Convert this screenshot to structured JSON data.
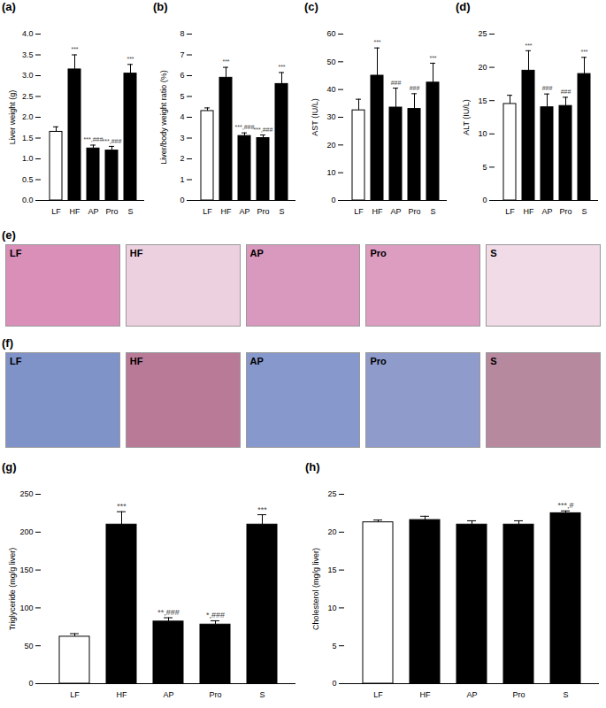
{
  "chart_data": [
    {
      "type": "bar",
      "title": "(a)",
      "y_label": "Liver weight (g)",
      "categories": [
        "LF",
        "HF",
        "AP",
        "Pro",
        "S"
      ],
      "values": [
        1.65,
        3.15,
        1.25,
        1.2,
        3.05
      ],
      "errors": [
        0.12,
        0.35,
        0.08,
        0.1,
        0.22
      ],
      "annotations": [
        null,
        "***",
        "***,###",
        "***,###",
        "***"
      ],
      "colors": [
        "#ffffff",
        "#000000",
        "#000000",
        "#000000",
        "#000000"
      ],
      "ylim": [
        0,
        4
      ],
      "yticks": [
        {
          "value": 0,
          "label": "0.0"
        },
        {
          "value": 0.5,
          "label": "0.5"
        },
        {
          "value": 1,
          "label": "1.0"
        },
        {
          "value": 1.5,
          "label": "1.5"
        },
        {
          "value": 2,
          "label": "2.0"
        },
        {
          "value": 2.5,
          "label": "2.5"
        },
        {
          "value": 3,
          "label": "3.0"
        },
        {
          "value": 3.5,
          "label": "3.5"
        },
        {
          "value": 4,
          "label": "4.0"
        }
      ]
    },
    {
      "type": "bar",
      "title": "(b)",
      "y_label": "Liver/body weight ratio (%)",
      "categories": [
        "LF",
        "HF",
        "AP",
        "Pro",
        "S"
      ],
      "values": [
        4.3,
        5.9,
        3.1,
        3.0,
        5.6
      ],
      "errors": [
        0.15,
        0.5,
        0.15,
        0.15,
        0.55
      ],
      "annotations": [
        null,
        "***",
        "***,###",
        "***,###",
        "***"
      ],
      "colors": [
        "#ffffff",
        "#000000",
        "#000000",
        "#000000",
        "#000000"
      ],
      "ylim": [
        0,
        8
      ],
      "yticks": [
        0,
        1,
        2,
        3,
        4,
        5,
        6,
        7,
        8
      ]
    },
    {
      "type": "bar",
      "title": "(c)",
      "y_label": "AST (IU/L)",
      "categories": [
        "LF",
        "HF",
        "AP",
        "Pro",
        "S"
      ],
      "values": [
        32.5,
        45,
        33.5,
        33,
        42.5
      ],
      "errors": [
        4,
        10,
        7,
        5.5,
        7
      ],
      "annotations": [
        null,
        "***",
        "###",
        "###",
        "***"
      ],
      "colors": [
        "#ffffff",
        "#000000",
        "#000000",
        "#000000",
        "#000000"
      ],
      "ylim": [
        0,
        60
      ],
      "yticks": [
        0,
        10,
        20,
        30,
        40,
        50,
        60
      ]
    },
    {
      "type": "bar",
      "title": "(d)",
      "y_label": "ALT (IU/L)",
      "categories": [
        "LF",
        "HF",
        "AP",
        "Pro",
        "S"
      ],
      "values": [
        14.5,
        19.5,
        14,
        14.2,
        19
      ],
      "errors": [
        1.3,
        3,
        2,
        1.3,
        2.5
      ],
      "annotations": [
        null,
        "***",
        "###",
        "###",
        "***"
      ],
      "colors": [
        "#ffffff",
        "#000000",
        "#000000",
        "#000000",
        "#000000"
      ],
      "ylim": [
        0,
        25
      ],
      "yticks": [
        0,
        5,
        10,
        15,
        20,
        25
      ]
    },
    {
      "type": "image",
      "title": "(e)",
      "categories": [
        "LF",
        "HF",
        "AP",
        "Pro",
        "S"
      ],
      "colors": [
        "#d98fb8",
        "#ecd0e0",
        "#d998bd",
        "#dc9dc0",
        "#f0dbe6"
      ]
    },
    {
      "type": "image",
      "title": "(f)",
      "categories": [
        "LF",
        "HF",
        "AP",
        "Pro",
        "S"
      ],
      "colors": [
        "#7f93c9",
        "#b97a98",
        "#8799cc",
        "#8e9bcb",
        "#b7899f"
      ]
    },
    {
      "type": "bar",
      "title": "(g)",
      "y_label": "Triglyceride (mg/g liver)",
      "categories": [
        "LF",
        "HF",
        "AP",
        "Pro",
        "S"
      ],
      "values": [
        62,
        210,
        82,
        78,
        210
      ],
      "errors": [
        4,
        17,
        5,
        5,
        13
      ],
      "annotations": [
        null,
        "***",
        "**,###",
        "*,###",
        "***"
      ],
      "colors": [
        "#ffffff",
        "#000000",
        "#000000",
        "#000000",
        "#000000"
      ],
      "ylim": [
        0,
        250
      ],
      "yticks": [
        0,
        50,
        100,
        150,
        200,
        250
      ]
    },
    {
      "type": "bar",
      "title": "(h)",
      "y_label": "Cholesterol (mg/g liver)",
      "categories": [
        "LF",
        "HF",
        "AP",
        "Pro",
        "S"
      ],
      "values": [
        21.3,
        21.6,
        21,
        21,
        22.5
      ],
      "errors": [
        0.3,
        0.5,
        0.5,
        0.5,
        0.3
      ],
      "annotations": [
        null,
        null,
        null,
        null,
        "***,#"
      ],
      "colors": [
        "#ffffff",
        "#000000",
        "#000000",
        "#000000",
        "#000000"
      ],
      "ylim": [
        0,
        25
      ],
      "yticks": [
        0,
        5,
        10,
        15,
        20,
        25
      ]
    }
  ]
}
